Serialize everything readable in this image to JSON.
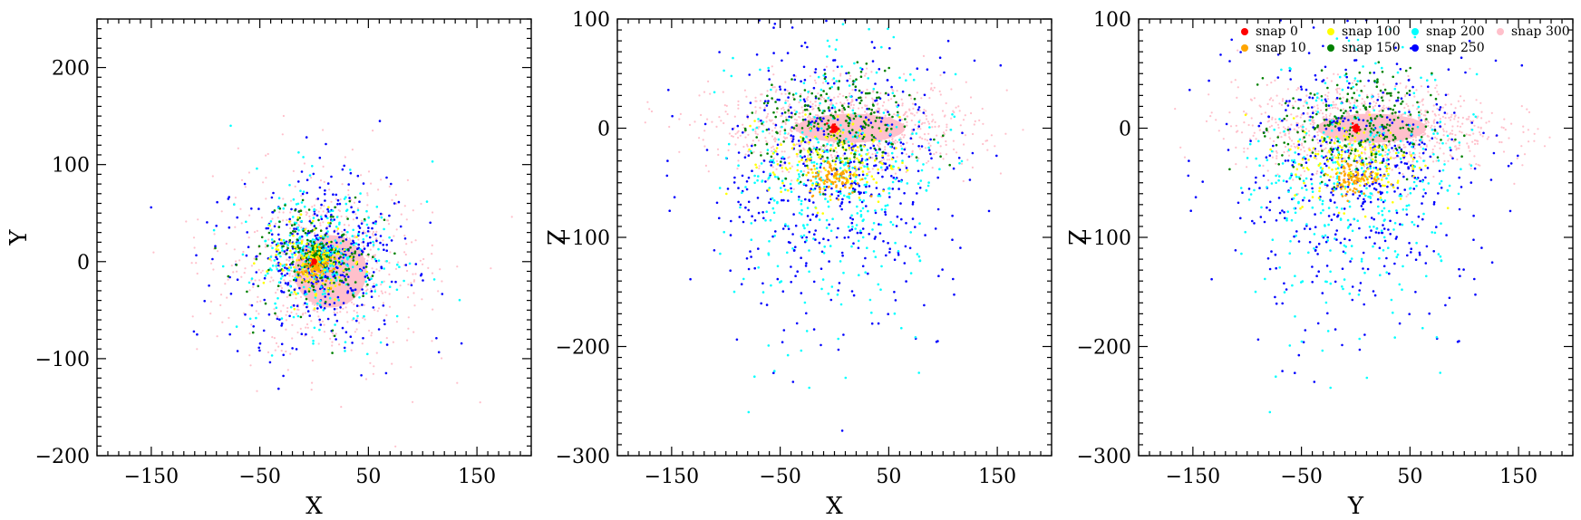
{
  "chart_data": [
    {
      "type": "scatter",
      "panel": "X-Y projection",
      "xlabel": "X",
      "ylabel": "Y",
      "xlim": [
        -200,
        200
      ],
      "ylim": [
        -200,
        250
      ],
      "xticks": [
        -150,
        -50,
        50,
        150
      ],
      "yticks": [
        -200,
        -100,
        0,
        100,
        200
      ],
      "xtick_labels": [
        "−150",
        "−50",
        "50",
        "150"
      ],
      "ytick_labels": [
        "−200",
        "−100",
        "0",
        "100",
        "200"
      ],
      "grid": false,
      "series": [
        {
          "name": "snap 0",
          "color": "#ff0000",
          "center": [
            0,
            0
          ],
          "spread": [
            2,
            2
          ]
        },
        {
          "name": "snap 10",
          "color": "#ffa500",
          "center": [
            2,
            -5
          ],
          "spread": [
            10,
            10
          ]
        },
        {
          "name": "snap 100",
          "color": "#ffff00",
          "center": [
            0,
            0
          ],
          "spread": [
            25,
            30
          ]
        },
        {
          "name": "snap 150",
          "color": "#008000",
          "center": [
            0,
            5
          ],
          "spread": [
            32,
            32
          ]
        },
        {
          "name": "snap 200",
          "color": "#00ffff",
          "center": [
            5,
            5
          ],
          "spread": [
            42,
            42
          ]
        },
        {
          "name": "snap 250",
          "color": "#0000ff",
          "center": [
            5,
            0
          ],
          "spread": [
            55,
            55
          ]
        },
        {
          "name": "snap 300",
          "color": "#ffc0cb",
          "center": [
            10,
            -5
          ],
          "spread": [
            60,
            55
          ]
        }
      ]
    },
    {
      "type": "scatter",
      "panel": "X-Z projection",
      "xlabel": "X",
      "ylabel": "Z",
      "xlim": [
        -200,
        200
      ],
      "ylim": [
        -300,
        100
      ],
      "xticks": [
        -150,
        -50,
        50,
        150
      ],
      "yticks": [
        -300,
        -200,
        -100,
        0,
        100
      ],
      "xtick_labels": [
        "−150",
        "−50",
        "50",
        "150"
      ],
      "ytick_labels": [
        "−300",
        "−200",
        "−100",
        "0",
        "100"
      ],
      "grid": false,
      "series": [
        {
          "name": "snap 0",
          "color": "#ff0000",
          "center": [
            0,
            0
          ],
          "spread": [
            2,
            2
          ]
        },
        {
          "name": "snap 10",
          "color": "#ffa500",
          "center": [
            0,
            -45
          ],
          "spread": [
            12,
            8
          ]
        },
        {
          "name": "snap 100",
          "color": "#ffff00",
          "center": [
            0,
            -30
          ],
          "spread": [
            30,
            20
          ]
        },
        {
          "name": "snap 150",
          "color": "#008000",
          "center": [
            0,
            0
          ],
          "spread": [
            35,
            25
          ]
        },
        {
          "name": "snap 200",
          "color": "#00ffff",
          "center": [
            0,
            -20
          ],
          "spread": [
            45,
            50
          ]
        },
        {
          "name": "snap 250",
          "color": "#0000ff",
          "center": [
            0,
            -20
          ],
          "spread": [
            55,
            60
          ]
        },
        {
          "name": "snap 300",
          "color": "#ffc0cb",
          "center": [
            10,
            0
          ],
          "spread": [
            60,
            20
          ]
        }
      ]
    },
    {
      "type": "scatter",
      "panel": "Y-Z projection",
      "xlabel": "Y",
      "ylabel": "Z",
      "xlim": [
        -200,
        200
      ],
      "ylim": [
        -300,
        100
      ],
      "xticks": [
        -150,
        -50,
        50,
        150
      ],
      "yticks": [
        -300,
        -200,
        -100,
        0,
        100
      ],
      "xtick_labels": [
        "−150",
        "−50",
        "50",
        "150"
      ],
      "ytick_labels": [
        "−300",
        "−200",
        "−100",
        "0",
        "100"
      ],
      "grid": false,
      "legend": "top-right",
      "legend_entries": [
        {
          "label": "snap 0",
          "color": "#ff0000"
        },
        {
          "label": "snap 10",
          "color": "#ffa500"
        },
        {
          "label": "snap 100",
          "color": "#ffff00"
        },
        {
          "label": "snap 150",
          "color": "#008000"
        },
        {
          "label": "snap 200",
          "color": "#00ffff"
        },
        {
          "label": "snap 250",
          "color": "#0000ff"
        },
        {
          "label": "snap 300",
          "color": "#ffc0cb"
        }
      ],
      "series": [
        {
          "name": "snap 0",
          "color": "#ff0000",
          "center": [
            0,
            0
          ],
          "spread": [
            2,
            2
          ]
        },
        {
          "name": "snap 10",
          "color": "#ffa500",
          "center": [
            0,
            -45
          ],
          "spread": [
            12,
            8
          ]
        },
        {
          "name": "snap 100",
          "color": "#ffff00",
          "center": [
            0,
            -30
          ],
          "spread": [
            30,
            20
          ]
        },
        {
          "name": "snap 150",
          "color": "#008000",
          "center": [
            0,
            0
          ],
          "spread": [
            35,
            25
          ]
        },
        {
          "name": "snap 200",
          "color": "#00ffff",
          "center": [
            0,
            -20
          ],
          "spread": [
            45,
            50
          ]
        },
        {
          "name": "snap 250",
          "color": "#0000ff",
          "center": [
            0,
            -20
          ],
          "spread": [
            55,
            60
          ]
        },
        {
          "name": "snap 300",
          "color": "#ffc0cb",
          "center": [
            10,
            0
          ],
          "spread": [
            60,
            20
          ]
        }
      ]
    }
  ]
}
